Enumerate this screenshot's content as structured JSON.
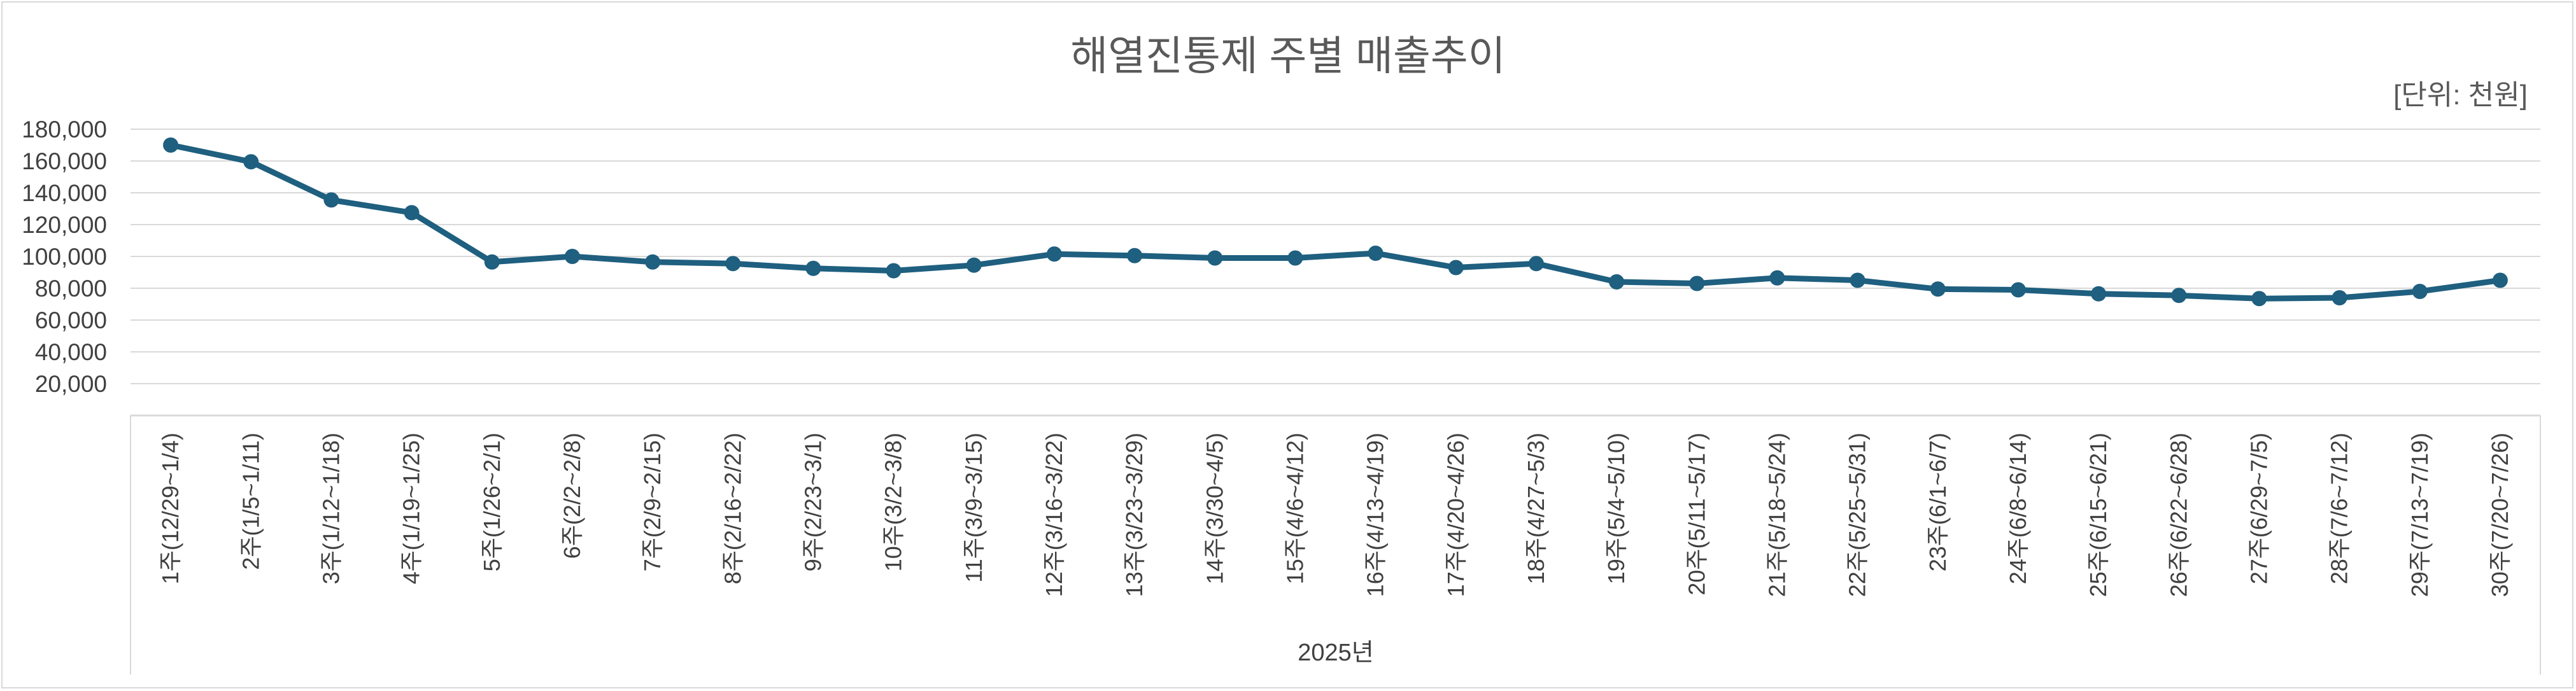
{
  "chart_data": {
    "type": "line",
    "title": "해열진통제 주별 매출추이",
    "unit_note": "[단위: 천원]",
    "xlabel": "2025년",
    "ylabel": "",
    "ylim": [
      0,
      180000
    ],
    "yticks": [
      {
        "value": 180000,
        "label": "180,000"
      },
      {
        "value": 160000,
        "label": "160,000"
      },
      {
        "value": 140000,
        "label": "140,000"
      },
      {
        "value": 120000,
        "label": "120,000"
      },
      {
        "value": 100000,
        "label": "100,000"
      },
      {
        "value": 80000,
        "label": "80,000"
      },
      {
        "value": 60000,
        "label": "60,000"
      },
      {
        "value": 40000,
        "label": "40,000"
      },
      {
        "value": 20000,
        "label": "20,000"
      }
    ],
    "grid": true,
    "legend": "none",
    "line_color": "#1f5f7f",
    "categories": [
      "1주(12/29~1/4)",
      "2주(1/5~1/11)",
      "3주(1/12~1/18)",
      "4주(1/19~1/25)",
      "5주(1/26~2/1)",
      "6주(2/2~2/8)",
      "7주(2/9~2/15)",
      "8주(2/16~2/22)",
      "9주(2/23~3/1)",
      "10주(3/2~3/8)",
      "11주(3/9~3/15)",
      "12주(3/16~3/22)",
      "13주(3/23~3/29)",
      "14주(3/30~4/5)",
      "15주(4/6~4/12)",
      "16주(4/13~4/19)",
      "17주(4/20~4/26)",
      "18주(4/27~5/3)",
      "19주(5/4~5/10)",
      "20주(5/11~5/17)",
      "21주(5/18~5/24)",
      "22주(5/25~5/31)",
      "23주(6/1~6/7)",
      "24주(6/8~6/14)",
      "25주(6/15~6/21)",
      "26주(6/22~6/28)",
      "27주(6/29~7/5)",
      "28주(7/6~7/12)",
      "29주(7/13~7/19)",
      "30주(7/20~7/26)"
    ],
    "values": [
      170000,
      159500,
      135500,
      127500,
      96500,
      100000,
      96500,
      95500,
      92500,
      91000,
      94500,
      101500,
      100500,
      99000,
      99000,
      102000,
      93000,
      95500,
      84000,
      83000,
      86500,
      85000,
      79500,
      79000,
      76500,
      75500,
      73500,
      74000,
      78000,
      85000
    ]
  }
}
